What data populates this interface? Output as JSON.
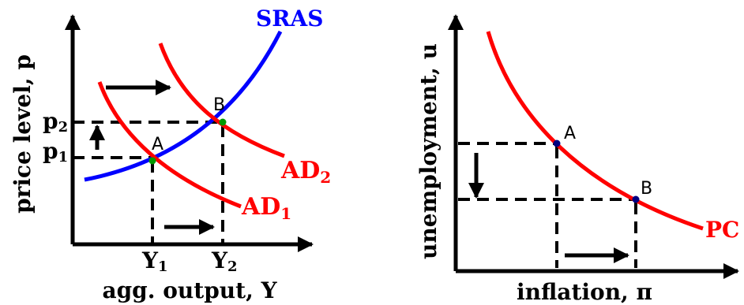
{
  "left_diagram": {
    "ylabel": "price level, p",
    "xlabel": "agg. output, Y",
    "curves": {
      "sras": {
        "label": "SRAS",
        "color": "#0000ff"
      },
      "ad1": {
        "label": "AD",
        "sub": "1",
        "color": "#ff0000"
      },
      "ad2": {
        "label": "AD",
        "sub": "2",
        "color": "#ff0000"
      }
    },
    "points": {
      "a": {
        "label": "A",
        "color": "#009900"
      },
      "b": {
        "label": "B",
        "color": "#009900"
      }
    },
    "y_ticks": {
      "p1": {
        "label": "p",
        "sub": "1"
      },
      "p2": {
        "label": "p",
        "sub": "2"
      }
    },
    "x_ticks": {
      "y1": {
        "label": "Y",
        "sub": "1"
      },
      "y2": {
        "label": "Y",
        "sub": "2"
      }
    }
  },
  "right_diagram": {
    "ylabel": "unemployment, u",
    "xlabel": "inflation, π",
    "curves": {
      "pc": {
        "label": "PC",
        "color": "#ff0000"
      }
    },
    "points": {
      "a": {
        "label": "A",
        "color": "#000080"
      },
      "b": {
        "label": "B",
        "color": "#000080"
      }
    }
  }
}
